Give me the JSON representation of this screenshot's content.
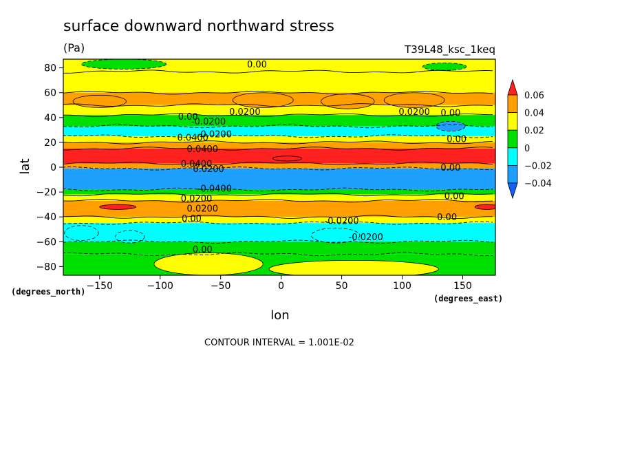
{
  "chart_data": {
    "type": "heatmap",
    "title": "surface downward northward stress",
    "units": "(Pa)",
    "run_label": "T39L48_ksc_1keq",
    "xlabel": "lon",
    "ylabel": "lat",
    "x_units": "(degrees_east)",
    "y_units": "(degrees_north)",
    "xlim": [
      -180,
      177
    ],
    "ylim": [
      -87,
      87
    ],
    "x_ticks": [
      -150,
      -100,
      -50,
      0,
      50,
      100,
      150
    ],
    "y_ticks": [
      80,
      60,
      40,
      20,
      0,
      -20,
      -40,
      -60,
      -80
    ],
    "footer": "CONTOUR INTERVAL = 1.001E-02",
    "colorbar": {
      "labels": [
        "0.06",
        "0.04",
        "0.02",
        "0",
        "−0.02",
        "−0.04"
      ],
      "levels": [
        -0.06,
        -0.04,
        -0.02,
        0,
        0.02,
        0.04,
        0.06
      ],
      "colors": [
        "#1560ff",
        "#1ea0ff",
        "#00ffff",
        "#00e000",
        "#ffff00",
        "#ffa000",
        "#ff2020"
      ]
    },
    "zonal_bands": [
      {
        "lat_from": 87,
        "lat_to": 77,
        "value": 0.005
      },
      {
        "lat_from": 77,
        "lat_to": 60,
        "value": 0.01
      },
      {
        "lat_from": 60,
        "lat_to": 50,
        "value": 0.02
      },
      {
        "lat_from": 50,
        "lat_to": 42,
        "value": 0.01
      },
      {
        "lat_from": 42,
        "lat_to": 33,
        "value": -0.01
      },
      {
        "lat_from": 33,
        "lat_to": 25,
        "value": -0.025
      },
      {
        "lat_from": 25,
        "lat_to": 20,
        "value": 0.01
      },
      {
        "lat_from": 20,
        "lat_to": 15,
        "value": 0.03
      },
      {
        "lat_from": 15,
        "lat_to": 3,
        "value": 0.045
      },
      {
        "lat_from": 3,
        "lat_to": -1,
        "value": 0.03
      },
      {
        "lat_from": -1,
        "lat_to": -18,
        "value": -0.05
      },
      {
        "lat_from": -18,
        "lat_to": -22,
        "value": -0.01
      },
      {
        "lat_from": -22,
        "lat_to": -27,
        "value": 0.01
      },
      {
        "lat_from": -27,
        "lat_to": -40,
        "value": 0.025
      },
      {
        "lat_from": -40,
        "lat_to": -45,
        "value": 0.01
      },
      {
        "lat_from": -45,
        "lat_to": -60,
        "value": -0.025
      },
      {
        "lat_from": -60,
        "lat_to": -70,
        "value": -0.01
      },
      {
        "lat_from": -70,
        "lat_to": -87,
        "value": -0.005
      }
    ],
    "blobs": [
      {
        "lon": -150,
        "lat": 53,
        "rlon": 22,
        "rlat": 5,
        "value": 0.025
      },
      {
        "lon": -15,
        "lat": 54,
        "rlon": 25,
        "rlat": 6,
        "value": 0.025
      },
      {
        "lon": 55,
        "lat": 53,
        "rlon": 22,
        "rlat": 6,
        "value": 0.025
      },
      {
        "lon": 110,
        "lat": 54,
        "rlon": 25,
        "rlat": 6,
        "value": 0.025
      },
      {
        "lon": 140,
        "lat": 33,
        "rlon": 12,
        "rlat": 4,
        "value": -0.045
      },
      {
        "lon": 5,
        "lat": 7,
        "rlon": 12,
        "rlat": 2,
        "value": 0.065
      },
      {
        "lon": -135,
        "lat": -32,
        "rlon": 15,
        "rlat": 2,
        "value": 0.045
      },
      {
        "lon": 170,
        "lat": -32,
        "rlon": 10,
        "rlat": 2,
        "value": 0.045
      },
      {
        "lon": -125,
        "lat": -56,
        "rlon": 12,
        "rlat": 5,
        "value": -0.035
      },
      {
        "lon": 45,
        "lat": -55,
        "rlon": 20,
        "rlat": 6,
        "value": -0.035
      },
      {
        "lon": -165,
        "lat": -53,
        "rlon": 14,
        "rlat": 6,
        "value": -0.035
      },
      {
        "lon": -60,
        "lat": -78,
        "rlon": 45,
        "rlat": 9,
        "value": 0.005
      },
      {
        "lon": 60,
        "lat": -82,
        "rlon": 70,
        "rlat": 7,
        "value": 0.005
      },
      {
        "lon": -130,
        "lat": 83,
        "rlon": 35,
        "rlat": 4,
        "value": -0.005
      },
      {
        "lon": 135,
        "lat": 81,
        "rlon": 18,
        "rlat": 3,
        "value": -0.005
      }
    ],
    "contour_labels": [
      {
        "text": "0.00",
        "lon": -20,
        "lat": 83
      },
      {
        "text": "0.0200",
        "lon": -30,
        "lat": 45
      },
      {
        "text": "0.0200",
        "lon": 110,
        "lat": 45
      },
      {
        "text": "0.00",
        "lon": 140,
        "lat": 44
      },
      {
        "text": "0.00",
        "lon": -77,
        "lat": 41
      },
      {
        "text": "-0.0200",
        "lon": -60,
        "lat": 37
      },
      {
        "text": "-0.0200",
        "lon": -55,
        "lat": 27
      },
      {
        "text": "0.0400",
        "lon": -73,
        "lat": 24
      },
      {
        "text": "0.0400",
        "lon": -65,
        "lat": 15
      },
      {
        "text": "0.00",
        "lon": 145,
        "lat": 23
      },
      {
        "text": "0.0400",
        "lon": -70,
        "lat": 3
      },
      {
        "text": "0.0200",
        "lon": -60,
        "lat": -1
      },
      {
        "text": "0.00",
        "lon": 140,
        "lat": 0
      },
      {
        "text": "-0.0400",
        "lon": -55,
        "lat": -17
      },
      {
        "text": "0.0200",
        "lon": -70,
        "lat": -25
      },
      {
        "text": "0.00",
        "lon": 143,
        "lat": -23
      },
      {
        "text": "0.0200",
        "lon": -65,
        "lat": -33
      },
      {
        "text": "0.00",
        "lon": -74,
        "lat": -41
      },
      {
        "text": "0.00",
        "lon": 137,
        "lat": -40
      },
      {
        "text": "-0.0200",
        "lon": 50,
        "lat": -43
      },
      {
        "text": "-0.0200",
        "lon": 70,
        "lat": -56
      },
      {
        "text": "0.00",
        "lon": -65,
        "lat": -66
      }
    ]
  }
}
